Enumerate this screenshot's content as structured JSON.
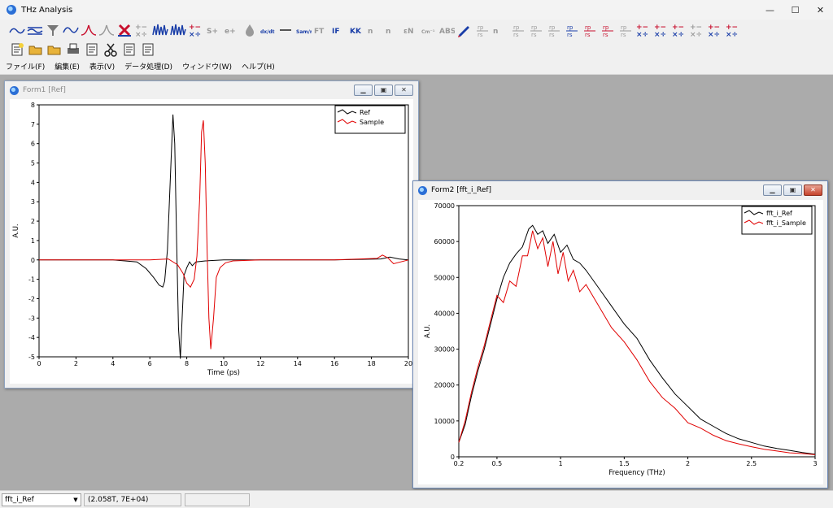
{
  "app": {
    "title": "THz Analysis",
    "controls": [
      "—",
      "☐",
      "✕"
    ]
  },
  "menu": [
    "ファイル(F)",
    "編集(E)",
    "表示(V)",
    "データ処理(D)",
    "ウィンドウ(W)",
    "ヘルプ(H)"
  ],
  "colors": {
    "ref": "#000000",
    "sample": "#e00000",
    "toolbar_blue": "#1a3ea8",
    "toolbar_red": "#c8102e"
  },
  "toolbar1_icons": [
    {
      "name": "line-plot-icon"
    },
    {
      "name": "multi-line-icon"
    },
    {
      "name": "filter-icon"
    },
    {
      "name": "smooth-icon"
    },
    {
      "name": "peak-red-icon"
    },
    {
      "name": "peak-gray-icon"
    },
    {
      "name": "cross-x-icon"
    },
    {
      "name": "math-ops-gray-icon"
    },
    {
      "name": "wave-blue-icon"
    },
    {
      "name": "wave-dense-icon"
    },
    {
      "name": "math-ops-blue-icon"
    },
    {
      "name": "s-sup-icon",
      "text": "S+"
    },
    {
      "name": "e-sup-icon",
      "text": "e+"
    },
    {
      "name": "drop-icon"
    },
    {
      "name": "derivative-icon",
      "text": "dx/dt"
    },
    {
      "name": "dash-icon"
    },
    {
      "name": "sam-ref-icon",
      "text": "Sam/ref"
    },
    {
      "name": "fft-gray-icon",
      "text": "FT"
    },
    {
      "name": "ift-blue-icon",
      "text": "IF"
    },
    {
      "name": "kk-icon",
      "text": "KK"
    },
    {
      "name": "n-gray-icon",
      "text": "n"
    },
    {
      "name": "n-ext-gray-icon",
      "text": "n"
    },
    {
      "name": "epsilon-icon",
      "text": "εN"
    },
    {
      "name": "cm-icon",
      "text": "Cm⁻¹"
    },
    {
      "name": "abs-icon",
      "text": "ABS"
    },
    {
      "name": "pen-icon"
    },
    {
      "name": "rp-fs-gray-1-icon",
      "text": "rp/rs"
    },
    {
      "name": "n-gray-2-icon",
      "text": "n"
    },
    {
      "name": "rp-fs-gray-2-icon",
      "text": "rp/rs"
    },
    {
      "name": "rp-fs-gray-3-icon",
      "text": "rp/rs"
    },
    {
      "name": "rp-fs-gray-4-icon",
      "text": "rp/rs"
    },
    {
      "name": "rp-fs-blue-1-icon",
      "text": "rp/rs"
    },
    {
      "name": "rp-fs-red-1-icon",
      "text": "rp/rs"
    },
    {
      "name": "rp-fs-red-2-icon",
      "text": "rp/rs"
    },
    {
      "name": "rp-fs-gray-5-icon",
      "text": "rp/rs"
    },
    {
      "name": "math-ops-1-icon"
    },
    {
      "name": "math-ops-2-icon"
    },
    {
      "name": "math-ops-3-icon"
    },
    {
      "name": "math-ops-gray-2-icon"
    },
    {
      "name": "math-ops-4-icon"
    },
    {
      "name": "math-ops-5-icon"
    }
  ],
  "toolbar2_icons": [
    {
      "name": "new-file-icon"
    },
    {
      "name": "open-folder-icon"
    },
    {
      "name": "open-folder-2-icon"
    },
    {
      "name": "print-icon"
    },
    {
      "name": "copy-icon"
    },
    {
      "name": "cut-icon"
    },
    {
      "name": "paste-icon"
    },
    {
      "name": "paste-special-icon"
    }
  ],
  "form1": {
    "title": "Form1 [Ref]",
    "chart_data": {
      "type": "line",
      "title": "",
      "xlabel": "Time (ps)",
      "ylabel": "A.U.",
      "xlim": [
        0,
        20
      ],
      "ylim": [
        -5,
        8
      ],
      "xticks": [
        0,
        2,
        4,
        6,
        8,
        10,
        12,
        14,
        16,
        18,
        20
      ],
      "yticks": [
        8,
        7,
        6,
        5,
        4,
        3,
        2,
        1,
        0,
        -1,
        -2,
        -3,
        -4,
        -5
      ],
      "legend": "top-right",
      "series": [
        {
          "name": "Ref",
          "color": "#000000",
          "x": [
            0,
            4,
            5.3,
            5.8,
            6.2,
            6.5,
            6.7,
            6.8,
            6.95,
            7.1,
            7.25,
            7.35,
            7.45,
            7.55,
            7.65,
            7.75,
            7.85,
            8.0,
            8.15,
            8.3,
            8.5,
            9,
            10,
            12,
            16,
            18.5,
            19,
            19.5,
            20
          ],
          "y": [
            0,
            0,
            -0.1,
            -0.45,
            -0.9,
            -1.3,
            -1.4,
            -1.1,
            0.5,
            4.0,
            7.5,
            6.0,
            1.0,
            -3.5,
            -5.1,
            -3.0,
            -0.8,
            -0.4,
            -0.1,
            -0.3,
            -0.1,
            -0.05,
            0,
            0,
            0,
            0.05,
            0.15,
            0.05,
            0
          ]
        },
        {
          "name": "Sample",
          "color": "#e00000",
          "x": [
            0,
            6,
            7.0,
            7.5,
            7.8,
            8.0,
            8.2,
            8.4,
            8.55,
            8.7,
            8.8,
            8.9,
            9.0,
            9.1,
            9.2,
            9.3,
            9.45,
            9.6,
            9.8,
            10.1,
            10.5,
            12,
            16,
            18.3,
            18.6,
            18.9,
            19.2,
            20
          ],
          "y": [
            0,
            0,
            0.05,
            -0.25,
            -0.7,
            -1.2,
            -1.4,
            -1.0,
            0.2,
            3.2,
            6.6,
            7.2,
            5.0,
            0.5,
            -3.0,
            -4.6,
            -3.0,
            -0.9,
            -0.4,
            -0.15,
            -0.05,
            0,
            0,
            0.08,
            0.25,
            0.1,
            -0.2,
            0
          ]
        }
      ]
    }
  },
  "form2": {
    "title": "Form2 [fft_i_Ref]",
    "chart_data": {
      "type": "line",
      "title": "",
      "xlabel": "Frequency (THz)",
      "ylabel": "A.U.",
      "xlim": [
        0.2,
        3
      ],
      "ylim": [
        0,
        70000
      ],
      "xticks": [
        0.2,
        0.5,
        1,
        1.5,
        2,
        2.5,
        3
      ],
      "xtick_labels": [
        "0.2",
        "0.5",
        "1",
        "1.5",
        "2",
        "2.5",
        "3"
      ],
      "yticks": [
        70000,
        60000,
        50000,
        40000,
        30000,
        20000,
        10000,
        0
      ],
      "legend": "top-right",
      "series": [
        {
          "name": "fft_i_Ref",
          "color": "#000000",
          "x": [
            0.2,
            0.25,
            0.3,
            0.35,
            0.4,
            0.45,
            0.5,
            0.55,
            0.6,
            0.65,
            0.7,
            0.75,
            0.78,
            0.82,
            0.86,
            0.9,
            0.95,
            1.0,
            1.05,
            1.1,
            1.15,
            1.2,
            1.3,
            1.4,
            1.5,
            1.6,
            1.7,
            1.8,
            1.9,
            2.0,
            2.1,
            2.2,
            2.3,
            2.4,
            2.5,
            2.6,
            2.7,
            2.8,
            2.9,
            3.0
          ],
          "y": [
            4000,
            9000,
            17000,
            24000,
            30000,
            37000,
            44000,
            50000,
            54000,
            56500,
            58500,
            63500,
            64500,
            62000,
            63000,
            59500,
            62000,
            57000,
            59000,
            55000,
            54000,
            52000,
            47000,
            42000,
            37000,
            33000,
            27000,
            22000,
            17500,
            14000,
            10500,
            8500,
            6500,
            5000,
            4000,
            3000,
            2300,
            1800,
            1200,
            700
          ]
        },
        {
          "name": "fft_i_Sample",
          "color": "#e00000",
          "x": [
            0.2,
            0.25,
            0.3,
            0.35,
            0.4,
            0.45,
            0.5,
            0.55,
            0.6,
            0.65,
            0.7,
            0.74,
            0.78,
            0.82,
            0.86,
            0.9,
            0.94,
            0.98,
            1.02,
            1.06,
            1.1,
            1.15,
            1.2,
            1.3,
            1.4,
            1.5,
            1.6,
            1.7,
            1.8,
            1.9,
            2.0,
            2.1,
            2.2,
            2.3,
            2.4,
            2.5,
            2.6,
            2.7,
            2.8,
            2.9,
            3.0
          ],
          "y": [
            4000,
            10000,
            18000,
            25000,
            31000,
            38000,
            45000,
            43000,
            49000,
            47500,
            56000,
            56000,
            63000,
            58000,
            61000,
            53000,
            60000,
            51000,
            57000,
            49000,
            52000,
            46000,
            48000,
            42000,
            36000,
            32000,
            27000,
            21000,
            16500,
            13500,
            9500,
            8000,
            6000,
            4500,
            3600,
            2800,
            2100,
            1600,
            1100,
            900,
            600
          ]
        }
      ]
    }
  },
  "statusbar": {
    "selected_dataset": "fft_i_Ref",
    "cursor_readout": "(2.058T, 7E+04)",
    "extra": ""
  }
}
